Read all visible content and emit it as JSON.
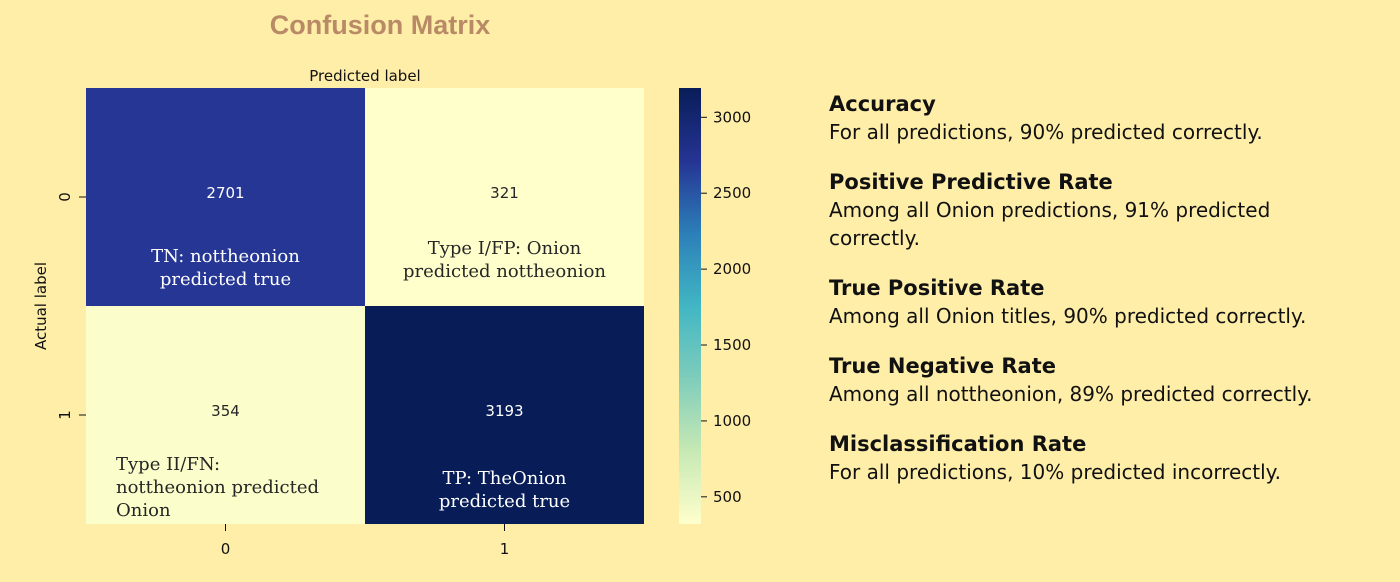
{
  "chart_data": {
    "type": "heatmap",
    "title": "Confusion Matrix",
    "xlabel": "Predicted label",
    "ylabel": "Actual label",
    "x_ticks": [
      "0",
      "1"
    ],
    "y_ticks": [
      "0",
      "1"
    ],
    "values": [
      [
        2701,
        321
      ],
      [
        354,
        3193
      ]
    ],
    "cell_annotations": [
      [
        "TN: nottheonion\npredicted true",
        "Type I/FP: Onion\npredicted nottheonion"
      ],
      [
        "Type II/FN:\nnottheonion predicted\nOnion",
        "TP: TheOnion\npredicted true"
      ]
    ],
    "colormap": [
      "#ffffcc",
      "#c7e9b4",
      "#7fcdbb",
      "#41b6c4",
      "#2c7fb8",
      "#253494",
      "#081d58"
    ],
    "colorbar": {
      "range": [
        321,
        3193
      ],
      "ticks": [
        500,
        1000,
        1500,
        2000,
        2500,
        3000
      ]
    }
  },
  "metrics": [
    {
      "title": "Accuracy",
      "desc": "For all predictions, 90% predicted correctly."
    },
    {
      "title": "Positive Predictive Rate",
      "desc": "Among all Onion predictions, 91% predicted correctly."
    },
    {
      "title": "True Positive Rate",
      "desc": "Among all Onion titles, 90% predicted correctly."
    },
    {
      "title": "True Negative Rate",
      "desc": "Among all nottheonion, 89% predicted correctly."
    },
    {
      "title": "Misclassification Rate",
      "desc": "For all predictions, 10% predicted incorrectly."
    }
  ]
}
